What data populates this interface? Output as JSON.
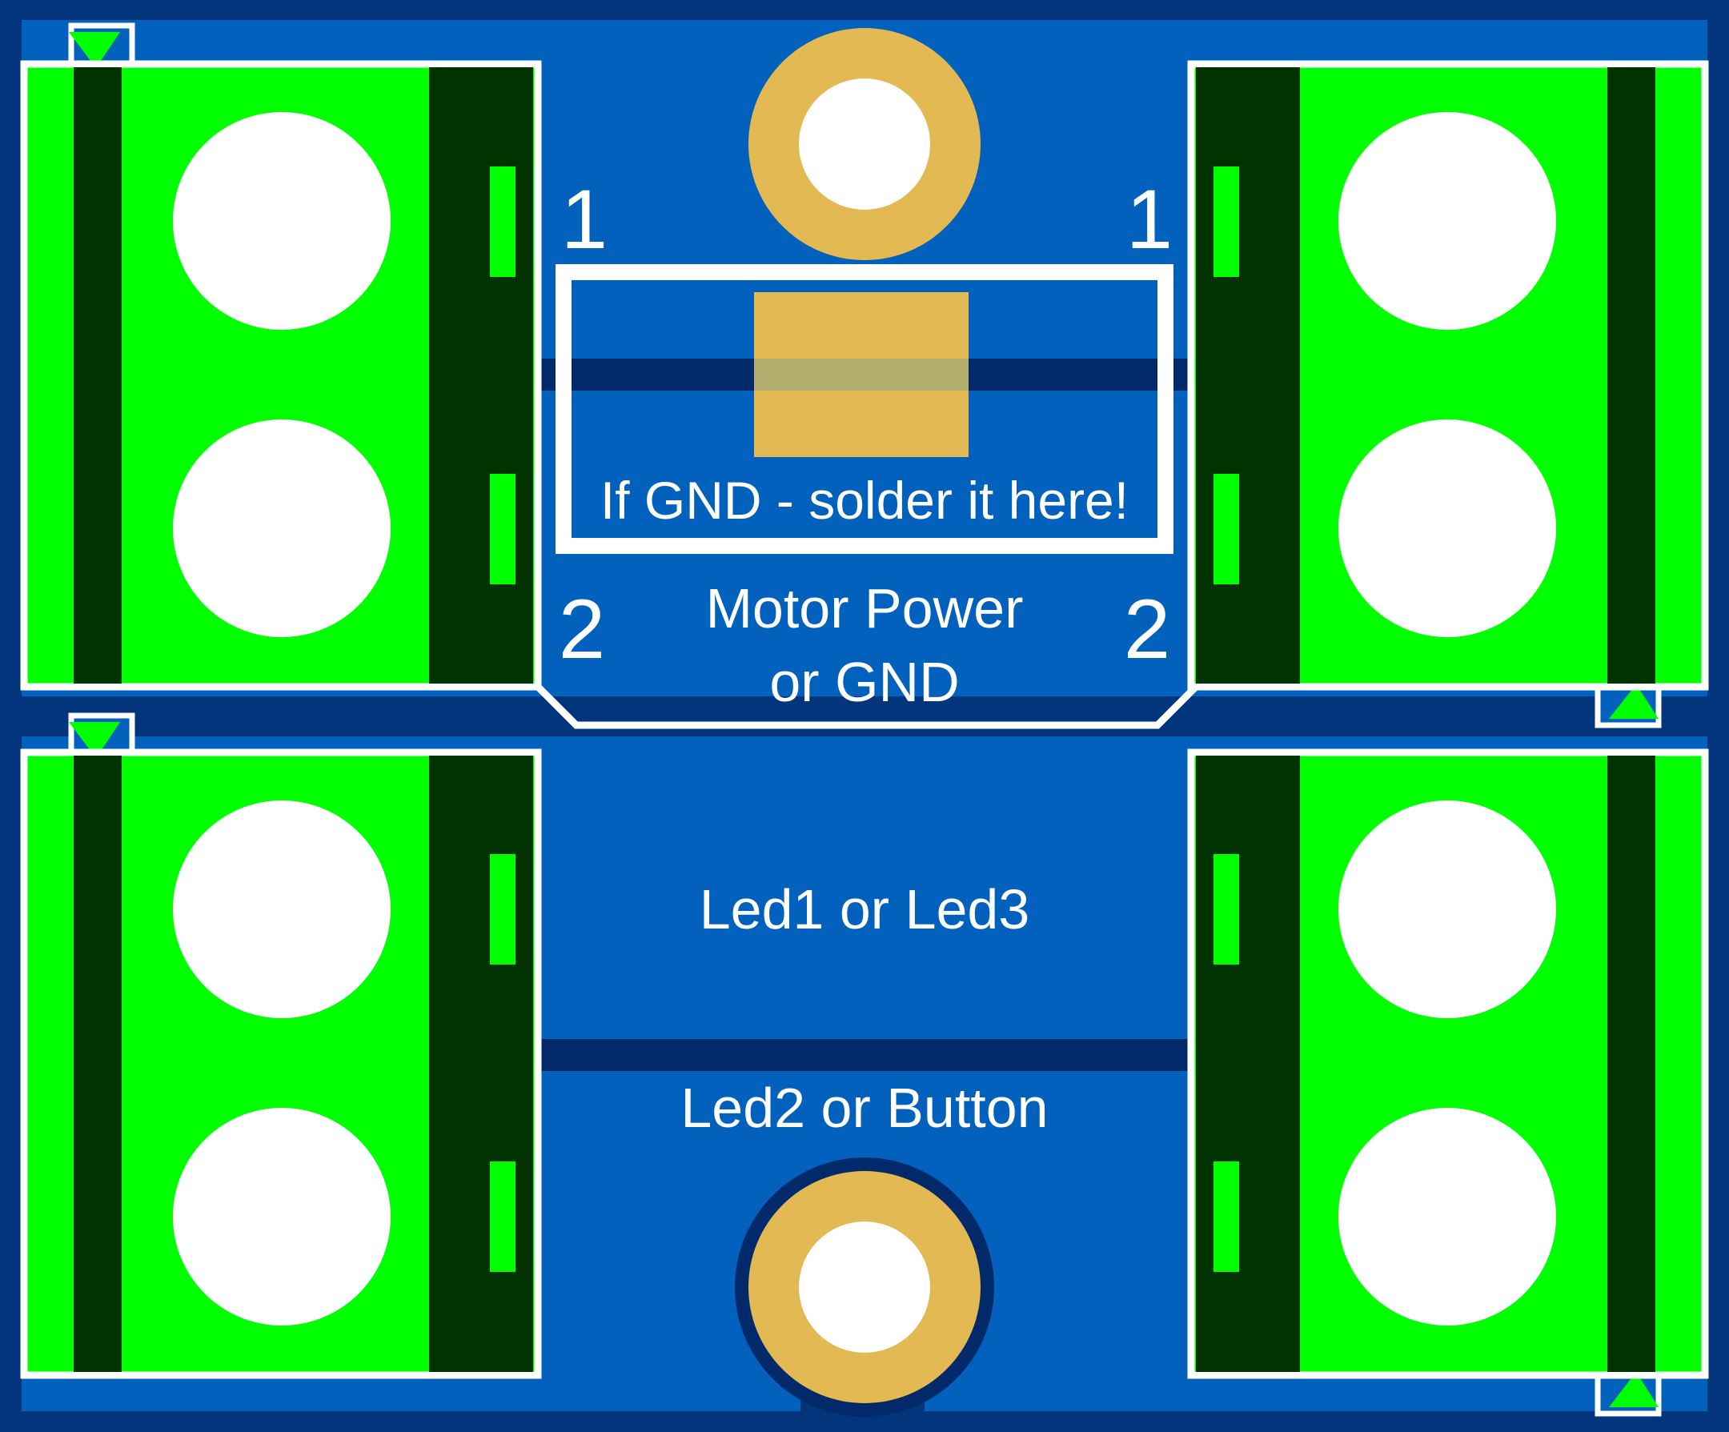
{
  "colors": {
    "board_edge": "#02357b",
    "copper_pour": "#0261bd",
    "trace": "#02296a",
    "terminal_body": "#00ff00",
    "terminal_dark": "#003300",
    "silkscreen": "#ffffff",
    "pad_copper": "#e2b952",
    "drill_hole": "#ffffff"
  },
  "labels": {
    "pin1_left": "1",
    "pin1_right": "1",
    "pin2_left": "2",
    "pin2_right": "2",
    "solder_note": "If GND - solder it here!",
    "motor_line1": "Motor Power",
    "motor_line2": "or GND",
    "led_row1": "Led1 or Led3",
    "led_row2": "Led2 or Button"
  }
}
